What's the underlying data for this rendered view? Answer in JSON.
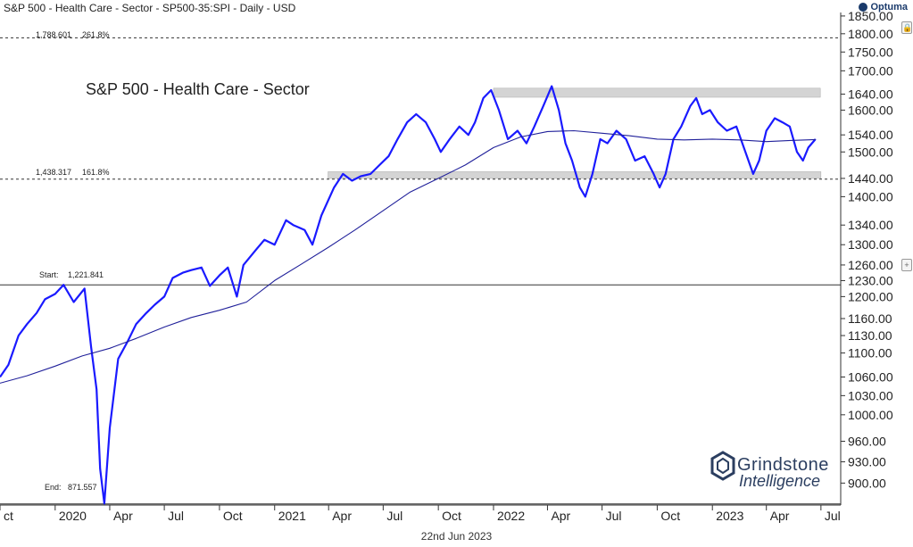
{
  "header": {
    "title": "S&P 500 - Health Care - Sector - SP500-35:SPI - Daily - USD",
    "brand": "Optuma"
  },
  "footer": {
    "date": "22nd Jun 2023"
  },
  "watermark": {
    "line1": "Grindstone",
    "line2": "Intelligence"
  },
  "icons": {
    "lock": "lock-icon",
    "plus": "plus-icon"
  },
  "annotations": {
    "fib_261": {
      "price": "1,788.601",
      "pct": "261.8%"
    },
    "fib_161": {
      "price": "1,438.317",
      "pct": "161.8%"
    },
    "start": {
      "label": "Start:",
      "price": "1,221.841"
    },
    "end": {
      "label": "End:",
      "price": "871.557"
    }
  },
  "colors": {
    "price": "#1a1aff",
    "ma": "#20209a",
    "band": "#d4d4d4",
    "background": "#ffffff"
  },
  "chart_data": {
    "type": "line",
    "title": "S&P 500 - Health Care - Sector",
    "y_scale": "log",
    "ylim": [
      870,
      1860
    ],
    "xlim": [
      "2019-10-01",
      "2023-07-31"
    ],
    "yticks": [
      "1850.00",
      "1800.00",
      "1750.00",
      "1700.00",
      "1640.00",
      "1600.00",
      "1540.00",
      "1500.00",
      "1440.00",
      "1400.00",
      "1340.00",
      "1300.00",
      "1260.00",
      "1230.00",
      "1200.00",
      "1160.00",
      "1130.00",
      "1100.00",
      "1060.00",
      "1030.00",
      "1000.00",
      "960.00",
      "930.00",
      "900.00"
    ],
    "xticks": [
      {
        "label": "ct",
        "date": "2019-10-01"
      },
      {
        "label": "2020",
        "date": "2020-01-01"
      },
      {
        "label": "Apr",
        "date": "2020-04-01"
      },
      {
        "label": "Jul",
        "date": "2020-07-01"
      },
      {
        "label": "Oct",
        "date": "2020-10-01"
      },
      {
        "label": "2021",
        "date": "2021-01-01"
      },
      {
        "label": "Apr",
        "date": "2021-04-01"
      },
      {
        "label": "Jul",
        "date": "2021-07-01"
      },
      {
        "label": "Oct",
        "date": "2021-10-01"
      },
      {
        "label": "2022",
        "date": "2022-01-01"
      },
      {
        "label": "Apr",
        "date": "2022-04-01"
      },
      {
        "label": "Jul",
        "date": "2022-07-01"
      },
      {
        "label": "Oct",
        "date": "2022-10-01"
      },
      {
        "label": "2023",
        "date": "2023-01-01"
      },
      {
        "label": "Apr",
        "date": "2023-04-01"
      },
      {
        "label": "Jul",
        "date": "2023-07-01"
      }
    ],
    "horizontal_lines": [
      {
        "value": 1788.601,
        "style": "dashed"
      },
      {
        "value": 1438.317,
        "style": "dashed"
      },
      {
        "value": 1221.841,
        "style": "solid"
      },
      {
        "value": 871.557,
        "style": "solid"
      }
    ],
    "bands": [
      {
        "from": "2022-01-01",
        "to": "2023-06-30",
        "low": 1632,
        "high": 1655
      },
      {
        "from": "2021-03-31",
        "to": "2023-07-01",
        "low": 1440,
        "high": 1455
      }
    ],
    "series": [
      {
        "name": "price",
        "points": [
          [
            "2019-10-01",
            1060
          ],
          [
            "2019-10-15",
            1080
          ],
          [
            "2019-11-01",
            1130
          ],
          [
            "2019-11-15",
            1150
          ],
          [
            "2019-12-01",
            1170
          ],
          [
            "2019-12-15",
            1195
          ],
          [
            "2020-01-01",
            1205
          ],
          [
            "2020-01-15",
            1222
          ],
          [
            "2020-02-01",
            1190
          ],
          [
            "2020-02-19",
            1215
          ],
          [
            "2020-03-01",
            1110
          ],
          [
            "2020-03-10",
            1040
          ],
          [
            "2020-03-16",
            920
          ],
          [
            "2020-03-23",
            872
          ],
          [
            "2020-04-01",
            980
          ],
          [
            "2020-04-15",
            1090
          ],
          [
            "2020-05-01",
            1120
          ],
          [
            "2020-05-15",
            1150
          ],
          [
            "2020-06-01",
            1170
          ],
          [
            "2020-06-15",
            1185
          ],
          [
            "2020-07-01",
            1200
          ],
          [
            "2020-07-15",
            1235
          ],
          [
            "2020-08-01",
            1245
          ],
          [
            "2020-08-15",
            1250
          ],
          [
            "2020-09-01",
            1255
          ],
          [
            "2020-09-15",
            1220
          ],
          [
            "2020-10-01",
            1240
          ],
          [
            "2020-10-15",
            1255
          ],
          [
            "2020-10-30",
            1200
          ],
          [
            "2020-11-10",
            1260
          ],
          [
            "2020-12-01",
            1290
          ],
          [
            "2020-12-15",
            1310
          ],
          [
            "2021-01-01",
            1300
          ],
          [
            "2021-01-20",
            1350
          ],
          [
            "2021-02-01",
            1340
          ],
          [
            "2021-02-20",
            1330
          ],
          [
            "2021-03-05",
            1300
          ],
          [
            "2021-03-20",
            1360
          ],
          [
            "2021-04-10",
            1420
          ],
          [
            "2021-04-25",
            1450
          ],
          [
            "2021-05-10",
            1435
          ],
          [
            "2021-05-25",
            1445
          ],
          [
            "2021-06-10",
            1450
          ],
          [
            "2021-06-25",
            1470
          ],
          [
            "2021-07-10",
            1490
          ],
          [
            "2021-07-25",
            1530
          ],
          [
            "2021-08-10",
            1570
          ],
          [
            "2021-08-25",
            1590
          ],
          [
            "2021-09-10",
            1570
          ],
          [
            "2021-09-25",
            1530
          ],
          [
            "2021-10-05",
            1500
          ],
          [
            "2021-10-20",
            1530
          ],
          [
            "2021-11-05",
            1560
          ],
          [
            "2021-11-20",
            1540
          ],
          [
            "2021-12-01",
            1570
          ],
          [
            "2021-12-15",
            1630
          ],
          [
            "2021-12-28",
            1650
          ],
          [
            "2022-01-10",
            1600
          ],
          [
            "2022-01-25",
            1530
          ],
          [
            "2022-02-10",
            1550
          ],
          [
            "2022-02-25",
            1520
          ],
          [
            "2022-03-10",
            1560
          ],
          [
            "2022-03-25",
            1610
          ],
          [
            "2022-04-08",
            1660
          ],
          [
            "2022-04-20",
            1600
          ],
          [
            "2022-05-01",
            1520
          ],
          [
            "2022-05-12",
            1480
          ],
          [
            "2022-05-25",
            1420
          ],
          [
            "2022-06-03",
            1400
          ],
          [
            "2022-06-15",
            1450
          ],
          [
            "2022-06-28",
            1530
          ],
          [
            "2022-07-10",
            1520
          ],
          [
            "2022-07-25",
            1550
          ],
          [
            "2022-08-10",
            1530
          ],
          [
            "2022-08-25",
            1480
          ],
          [
            "2022-09-10",
            1490
          ],
          [
            "2022-09-25",
            1450
          ],
          [
            "2022-10-05",
            1420
          ],
          [
            "2022-10-15",
            1450
          ],
          [
            "2022-10-28",
            1530
          ],
          [
            "2022-11-10",
            1560
          ],
          [
            "2022-11-25",
            1610
          ],
          [
            "2022-12-05",
            1630
          ],
          [
            "2022-12-15",
            1590
          ],
          [
            "2022-12-28",
            1600
          ],
          [
            "2023-01-10",
            1570
          ],
          [
            "2023-01-25",
            1550
          ],
          [
            "2023-02-10",
            1560
          ],
          [
            "2023-02-25",
            1500
          ],
          [
            "2023-03-10",
            1450
          ],
          [
            "2023-03-20",
            1480
          ],
          [
            "2023-04-01",
            1550
          ],
          [
            "2023-04-15",
            1580
          ],
          [
            "2023-04-28",
            1570
          ],
          [
            "2023-05-10",
            1560
          ],
          [
            "2023-05-22",
            1500
          ],
          [
            "2023-06-01",
            1480
          ],
          [
            "2023-06-10",
            1510
          ],
          [
            "2023-06-22",
            1530
          ]
        ]
      },
      {
        "name": "moving average",
        "points": [
          [
            "2019-10-01",
            1050
          ],
          [
            "2019-11-15",
            1062
          ],
          [
            "2020-01-01",
            1078
          ],
          [
            "2020-02-15",
            1095
          ],
          [
            "2020-04-01",
            1108
          ],
          [
            "2020-05-15",
            1125
          ],
          [
            "2020-07-01",
            1145
          ],
          [
            "2020-08-15",
            1162
          ],
          [
            "2020-10-01",
            1175
          ],
          [
            "2020-11-15",
            1190
          ],
          [
            "2021-01-01",
            1230
          ],
          [
            "2021-02-15",
            1262
          ],
          [
            "2021-04-01",
            1295
          ],
          [
            "2021-05-15",
            1330
          ],
          [
            "2021-07-01",
            1370
          ],
          [
            "2021-08-15",
            1410
          ],
          [
            "2021-10-01",
            1440
          ],
          [
            "2021-11-15",
            1470
          ],
          [
            "2022-01-01",
            1510
          ],
          [
            "2022-02-15",
            1535
          ],
          [
            "2022-04-01",
            1548
          ],
          [
            "2022-05-15",
            1550
          ],
          [
            "2022-07-01",
            1544
          ],
          [
            "2022-08-15",
            1538
          ],
          [
            "2022-10-01",
            1530
          ],
          [
            "2022-11-15",
            1528
          ],
          [
            "2023-01-01",
            1530
          ],
          [
            "2023-02-15",
            1528
          ],
          [
            "2023-04-01",
            1524
          ],
          [
            "2023-05-15",
            1527
          ],
          [
            "2023-06-22",
            1529
          ]
        ]
      }
    ]
  }
}
